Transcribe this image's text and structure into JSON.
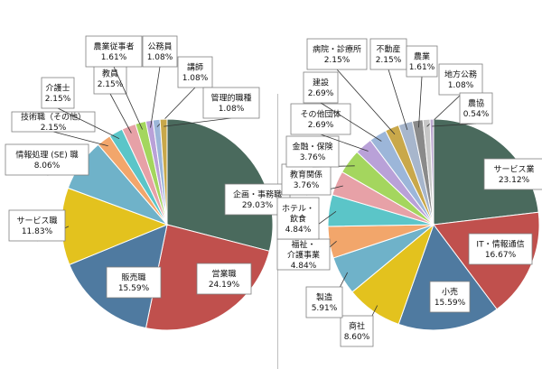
{
  "chart_data": [
    {
      "type": "pie",
      "title": "",
      "slices": [
        {
          "label": "企画・事務職",
          "value": 29.03,
          "value_label": "29.03%",
          "color": "#4a6a5d"
        },
        {
          "label": "営業職",
          "value": 24.19,
          "value_label": "24.19%",
          "color": "#c0504d"
        },
        {
          "label": "販売職",
          "value": 15.59,
          "value_label": "15.59%",
          "color": "#4f7aa0"
        },
        {
          "label": "サービス職",
          "value": 11.83,
          "value_label": "11.83%",
          "color": "#e3c21e"
        },
        {
          "label": "情報処理 (SE) 職",
          "value": 8.06,
          "value_label": "8.06%",
          "color": "#6fb2c9"
        },
        {
          "label": "技術職（その他）",
          "value": 2.15,
          "value_label": "2.15%",
          "color": "#f2a66b"
        },
        {
          "label": "介護士",
          "value": 2.15,
          "value_label": "2.15%",
          "color": "#5bc5c8"
        },
        {
          "label": "教員",
          "value": 2.15,
          "value_label": "2.15%",
          "color": "#e7a1a7"
        },
        {
          "label": "農業従事者",
          "value": 1.61,
          "value_label": "1.61%",
          "color": "#a4d65e"
        },
        {
          "label": "公務員",
          "value": 1.08,
          "value_label": "1.08%",
          "color": "#b9a1d8"
        },
        {
          "label": "講師",
          "value": 1.08,
          "value_label": "1.08%",
          "color": "#9cb6d9"
        },
        {
          "label": "管理的職種",
          "value": 1.08,
          "value_label": "1.08%",
          "color": "#c9a84a"
        }
      ]
    },
    {
      "type": "pie",
      "title": "",
      "slices": [
        {
          "label": "サービス業",
          "value": 23.12,
          "value_label": "23.12%",
          "color": "#4a6a5d"
        },
        {
          "label": "IT・情報通信",
          "value": 16.67,
          "value_label": "16.67%",
          "color": "#c0504d"
        },
        {
          "label": "小売",
          "value": 15.59,
          "value_label": "15.59%",
          "color": "#4f7aa0"
        },
        {
          "label": "商社",
          "value": 8.6,
          "value_label": "8.60%",
          "color": "#e3c21e"
        },
        {
          "label": "製造",
          "value": 5.91,
          "value_label": "5.91%",
          "color": "#6fb2c9"
        },
        {
          "label": "福祉・介護事業",
          "value": 4.84,
          "value_label": "4.84%",
          "color": "#f2a66b"
        },
        {
          "label": "ホテル・飲食",
          "value": 4.84,
          "value_label": "4.84%",
          "color": "#5bc5c8"
        },
        {
          "label": "教育関係",
          "value": 3.76,
          "value_label": "3.76%",
          "color": "#e7a1a7"
        },
        {
          "label": "金融・保険",
          "value": 3.76,
          "value_label": "3.76%",
          "color": "#a4d65e"
        },
        {
          "label": "その他団体",
          "value": 2.69,
          "value_label": "2.69%",
          "color": "#b9a1d8"
        },
        {
          "label": "建設",
          "value": 2.69,
          "value_label": "2.69%",
          "color": "#9cb6d9"
        },
        {
          "label": "病院・診療所",
          "value": 2.15,
          "value_label": "2.15%",
          "color": "#c9a84a"
        },
        {
          "label": "不動産",
          "value": 2.15,
          "value_label": "2.15%",
          "color": "#a7b6cc"
        },
        {
          "label": "農業",
          "value": 1.61,
          "value_label": "1.61%",
          "color": "#8a8a8a"
        },
        {
          "label": "地方公務",
          "value": 1.08,
          "value_label": "1.08%",
          "color": "#c7c7c7"
        },
        {
          "label": "農協",
          "value": 0.54,
          "value_label": "0.54%",
          "color": "#bba8d0"
        }
      ]
    }
  ]
}
